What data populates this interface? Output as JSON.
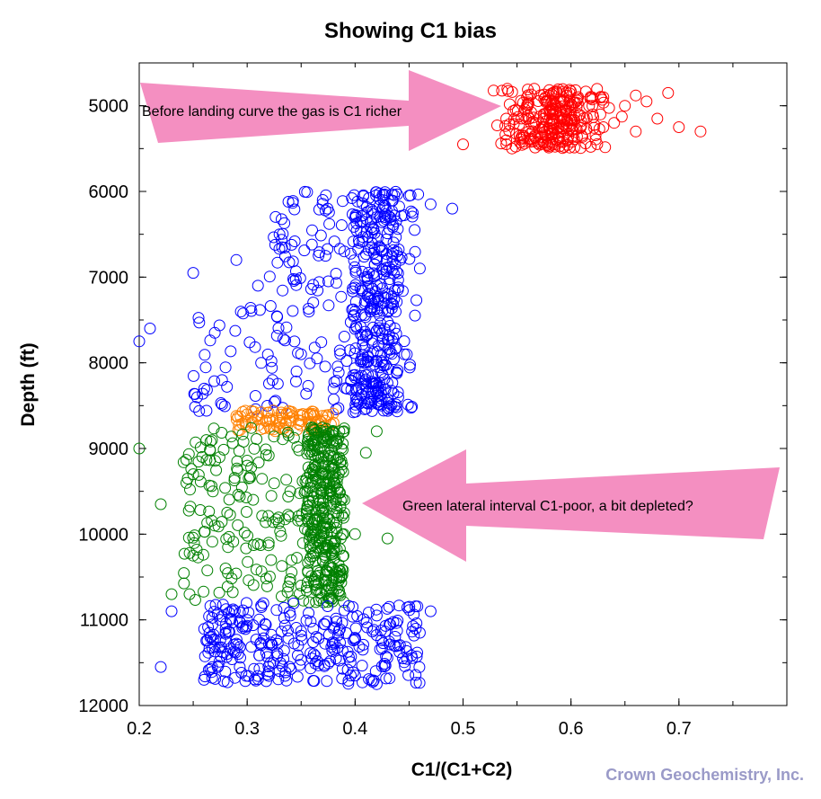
{
  "chart_data": {
    "type": "scatter",
    "title": "Showing C1 bias",
    "xlabel": "C1/(C1+C2)",
    "ylabel": "Depth (ft)",
    "xlim": [
      0.2,
      0.8
    ],
    "ylim": [
      12000,
      4500
    ],
    "y_inverted": true,
    "grid": false,
    "xticks": [
      "0.2",
      "0.3",
      "0.4",
      "0.5",
      "0.6",
      "0.7"
    ],
    "yticks": [
      "5000",
      "6000",
      "7000",
      "8000",
      "9000",
      "10000",
      "11000",
      "12000"
    ],
    "marker": "open-circle",
    "series": [
      {
        "color": "#ff0000",
        "depth_range": [
          4800,
          5500
        ],
        "x_range": [
          0.5,
          0.72
        ],
        "points": [
          [
            0.5,
            5450
          ],
          [
            0.54,
            5150
          ],
          [
            0.56,
            5120
          ],
          [
            0.58,
            5050
          ],
          [
            0.6,
            4980
          ],
          [
            0.62,
            5100
          ],
          [
            0.63,
            4900
          ],
          [
            0.64,
            5200
          ],
          [
            0.65,
            5000
          ],
          [
            0.66,
            5300
          ],
          [
            0.67,
            4950
          ],
          [
            0.68,
            5150
          ],
          [
            0.69,
            4850
          ],
          [
            0.7,
            5250
          ],
          [
            0.72,
            5300
          ],
          [
            0.57,
            5420
          ],
          [
            0.61,
            5350
          ],
          [
            0.63,
            5250
          ],
          [
            0.66,
            4880
          ],
          [
            0.59,
            5180
          ]
        ]
      },
      {
        "color": "#0000ff",
        "depth_range": [
          6000,
          8600
        ],
        "x_range": [
          0.2,
          0.49
        ],
        "points": [
          [
            0.2,
            7750
          ],
          [
            0.21,
            7600
          ],
          [
            0.25,
            6950
          ],
          [
            0.27,
            7650
          ],
          [
            0.29,
            6800
          ],
          [
            0.31,
            7100
          ],
          [
            0.33,
            6500
          ],
          [
            0.35,
            7900
          ],
          [
            0.37,
            6100
          ],
          [
            0.38,
            8300
          ],
          [
            0.39,
            6700
          ],
          [
            0.4,
            7400
          ],
          [
            0.41,
            8000
          ],
          [
            0.42,
            6300
          ],
          [
            0.43,
            7200
          ],
          [
            0.44,
            8400
          ],
          [
            0.45,
            6050
          ],
          [
            0.46,
            6900
          ],
          [
            0.47,
            6150
          ],
          [
            0.49,
            6200
          ]
        ]
      },
      {
        "color": "#ff8000",
        "depth_range": [
          8550,
          8800
        ],
        "x_range": [
          0.29,
          0.38
        ],
        "points": [
          [
            0.29,
            8620
          ],
          [
            0.3,
            8600
          ],
          [
            0.31,
            8650
          ],
          [
            0.32,
            8580
          ],
          [
            0.33,
            8700
          ],
          [
            0.34,
            8640
          ],
          [
            0.35,
            8680
          ],
          [
            0.36,
            8720
          ],
          [
            0.37,
            8750
          ],
          [
            0.38,
            8700
          ]
        ]
      },
      {
        "color": "#008000",
        "depth_range": [
          8750,
          10800
        ],
        "x_range": [
          0.2,
          0.43
        ],
        "points": [
          [
            0.2,
            9000
          ],
          [
            0.22,
            9650
          ],
          [
            0.23,
            10700
          ],
          [
            0.25,
            9300
          ],
          [
            0.27,
            9900
          ],
          [
            0.28,
            10400
          ],
          [
            0.3,
            9200
          ],
          [
            0.32,
            10100
          ],
          [
            0.34,
            9500
          ],
          [
            0.35,
            10600
          ],
          [
            0.36,
            8900
          ],
          [
            0.37,
            9700
          ],
          [
            0.37,
            10300
          ],
          [
            0.38,
            9100
          ],
          [
            0.38,
            10500
          ],
          [
            0.39,
            9600
          ],
          [
            0.4,
            10000
          ],
          [
            0.41,
            9050
          ],
          [
            0.42,
            8800
          ],
          [
            0.43,
            10050
          ]
        ]
      },
      {
        "color": "#0000ff",
        "depth_range": [
          10800,
          11750
        ],
        "x_range": [
          0.22,
          0.47
        ],
        "points": [
          [
            0.22,
            11550
          ],
          [
            0.23,
            10900
          ],
          [
            0.26,
            11700
          ],
          [
            0.28,
            11250
          ],
          [
            0.3,
            11000
          ],
          [
            0.32,
            11600
          ],
          [
            0.34,
            10950
          ],
          [
            0.36,
            11450
          ],
          [
            0.38,
            11100
          ],
          [
            0.4,
            11650
          ],
          [
            0.42,
            10950
          ],
          [
            0.42,
            11750
          ],
          [
            0.44,
            11300
          ],
          [
            0.46,
            11150
          ],
          [
            0.47,
            10900
          ]
        ]
      }
    ],
    "annotations": [
      {
        "text": "Before landing curve the gas is C1 richer",
        "arrow": "right"
      },
      {
        "text": "Green lateral interval C1-poor, a bit depleted?",
        "arrow": "left"
      }
    ]
  },
  "credit": "Crown Geochemistry, Inc.",
  "colors": {
    "red_series": "#ff0000",
    "blue_series": "#0000ff",
    "orange_series": "#ff8000",
    "green_series": "#008000",
    "arrow_fill": "#f48fc1",
    "credit_text": "#9a9ac8"
  }
}
